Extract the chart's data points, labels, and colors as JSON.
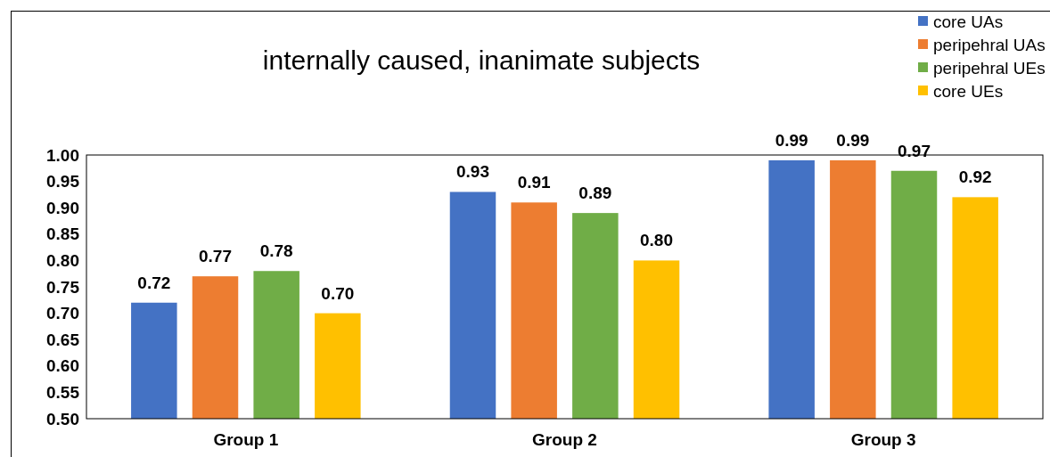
{
  "chart_data": {
    "type": "bar",
    "title": "internally caused, inanimate subjects",
    "categories": [
      "Group 1",
      "Group 2",
      "Group 3"
    ],
    "series": [
      {
        "name": "core UAs",
        "color": "#4472c4",
        "values": [
          0.72,
          0.93,
          0.99
        ],
        "value_labels": [
          "0.72",
          "0.93",
          "0.99"
        ]
      },
      {
        "name": "peripehral UAs",
        "color": "#ed7d31",
        "values": [
          0.77,
          0.91,
          0.99
        ],
        "value_labels": [
          "0.77",
          "0.91",
          "0.99"
        ]
      },
      {
        "name": "peripehral UEs",
        "color": "#70ad47",
        "values": [
          0.78,
          0.89,
          0.97
        ],
        "value_labels": [
          "0.78",
          "0.89",
          "0.97"
        ]
      },
      {
        "name": "core UEs",
        "color": "#ffc000",
        "values": [
          0.7,
          0.8,
          0.92
        ],
        "value_labels": [
          "0.70",
          "0.80",
          "0.92"
        ]
      }
    ],
    "ylim": [
      0.5,
      1.0
    ],
    "yticks": [
      {
        "value": 0.5,
        "label": "0.50"
      },
      {
        "value": 0.55,
        "label": "0.55"
      },
      {
        "value": 0.6,
        "label": "0.60"
      },
      {
        "value": 0.65,
        "label": "0.65"
      },
      {
        "value": 0.7,
        "label": "0.70"
      },
      {
        "value": 0.75,
        "label": "0.75"
      },
      {
        "value": 0.8,
        "label": "0.80"
      },
      {
        "value": 0.85,
        "label": "0.85"
      },
      {
        "value": 0.9,
        "label": "0.90"
      },
      {
        "value": 0.95,
        "label": "0.95"
      },
      {
        "value": 1.0,
        "label": "1.00"
      }
    ],
    "grid": false,
    "legend": "top right"
  }
}
